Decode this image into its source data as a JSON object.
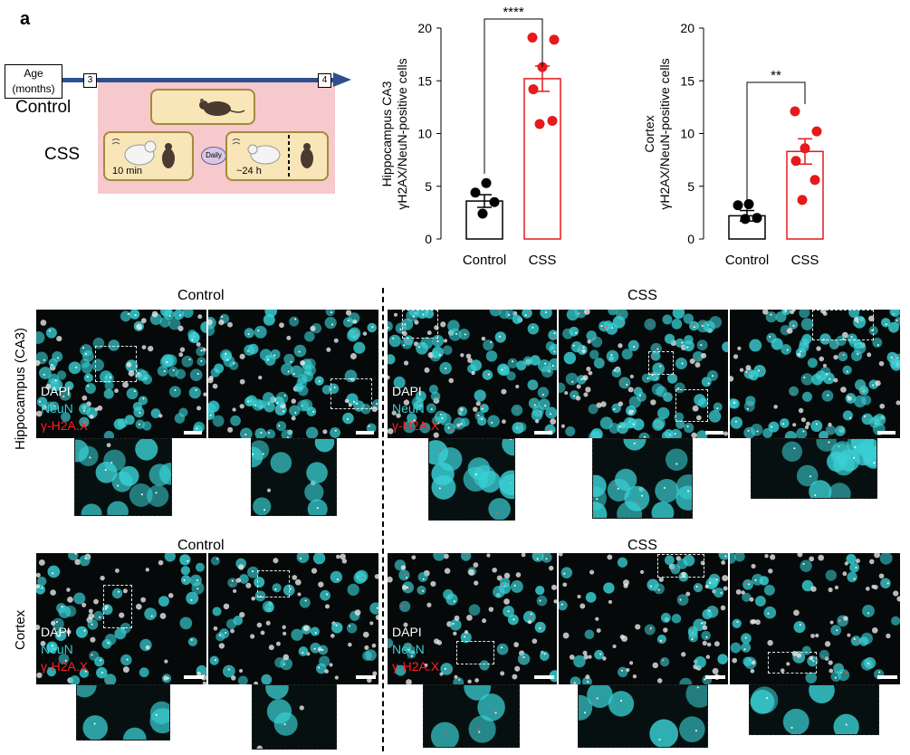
{
  "figure": {
    "panel_letter": "a",
    "schematic": {
      "age_label_line1": "Age",
      "age_label_line2": "(months)",
      "tick_start": "3",
      "tick_end": "4",
      "group_control": "Control",
      "group_css": "CSS",
      "css_exposure_label": "10 min",
      "daily_label": "Daily",
      "css_recovery_label": "~24 h"
    },
    "colors": {
      "control_bar": "#000000",
      "css_bar": "#e31a1c",
      "css_dot": "#e41a1c",
      "control_dot": "#000000",
      "timeline": "#2e4f8f",
      "neun": "#39d0d4"
    },
    "image_panel": {
      "control_header": "Control",
      "css_header": "CSS",
      "row_hippocampus": "Hippocampus (CA3)",
      "row_cortex": "Cortex",
      "legend_dapi": "DAPI",
      "legend_neun": "NeuN",
      "legend_h2ax": "γ-H2A.X"
    }
  },
  "chart_data": [
    {
      "type": "bar",
      "title": "",
      "ylabel_line1": "Hippocampus CA3",
      "ylabel_line2": "γH2AX/NeuN-positive cells",
      "categories": [
        "Control",
        "CSS"
      ],
      "values": [
        3.6,
        15.2
      ],
      "sem": [
        0.6,
        1.2
      ],
      "points": [
        [
          5.3,
          4.4,
          3.5,
          2.4
        ],
        [
          19.1,
          18.9,
          16.3,
          14.2,
          11.2,
          10.9
        ]
      ],
      "ylim": [
        0,
        20
      ],
      "yticks": [
        "0",
        "5",
        "10",
        "15",
        "20"
      ],
      "significance": "****"
    },
    {
      "type": "bar",
      "title": "",
      "ylabel_line1": "Cortex",
      "ylabel_line2": "γH2AX/NeuN-positive cells",
      "categories": [
        "Control",
        "CSS"
      ],
      "values": [
        2.2,
        8.3
      ],
      "sem": [
        0.5,
        1.2
      ],
      "points": [
        [
          3.3,
          3.2,
          2.0,
          1.9
        ],
        [
          12.1,
          10.2,
          8.6,
          7.4,
          5.6,
          3.7
        ]
      ],
      "ylim": [
        0,
        20
      ],
      "yticks": [
        "0",
        "5",
        "10",
        "15",
        "20"
      ],
      "significance": "**"
    }
  ]
}
